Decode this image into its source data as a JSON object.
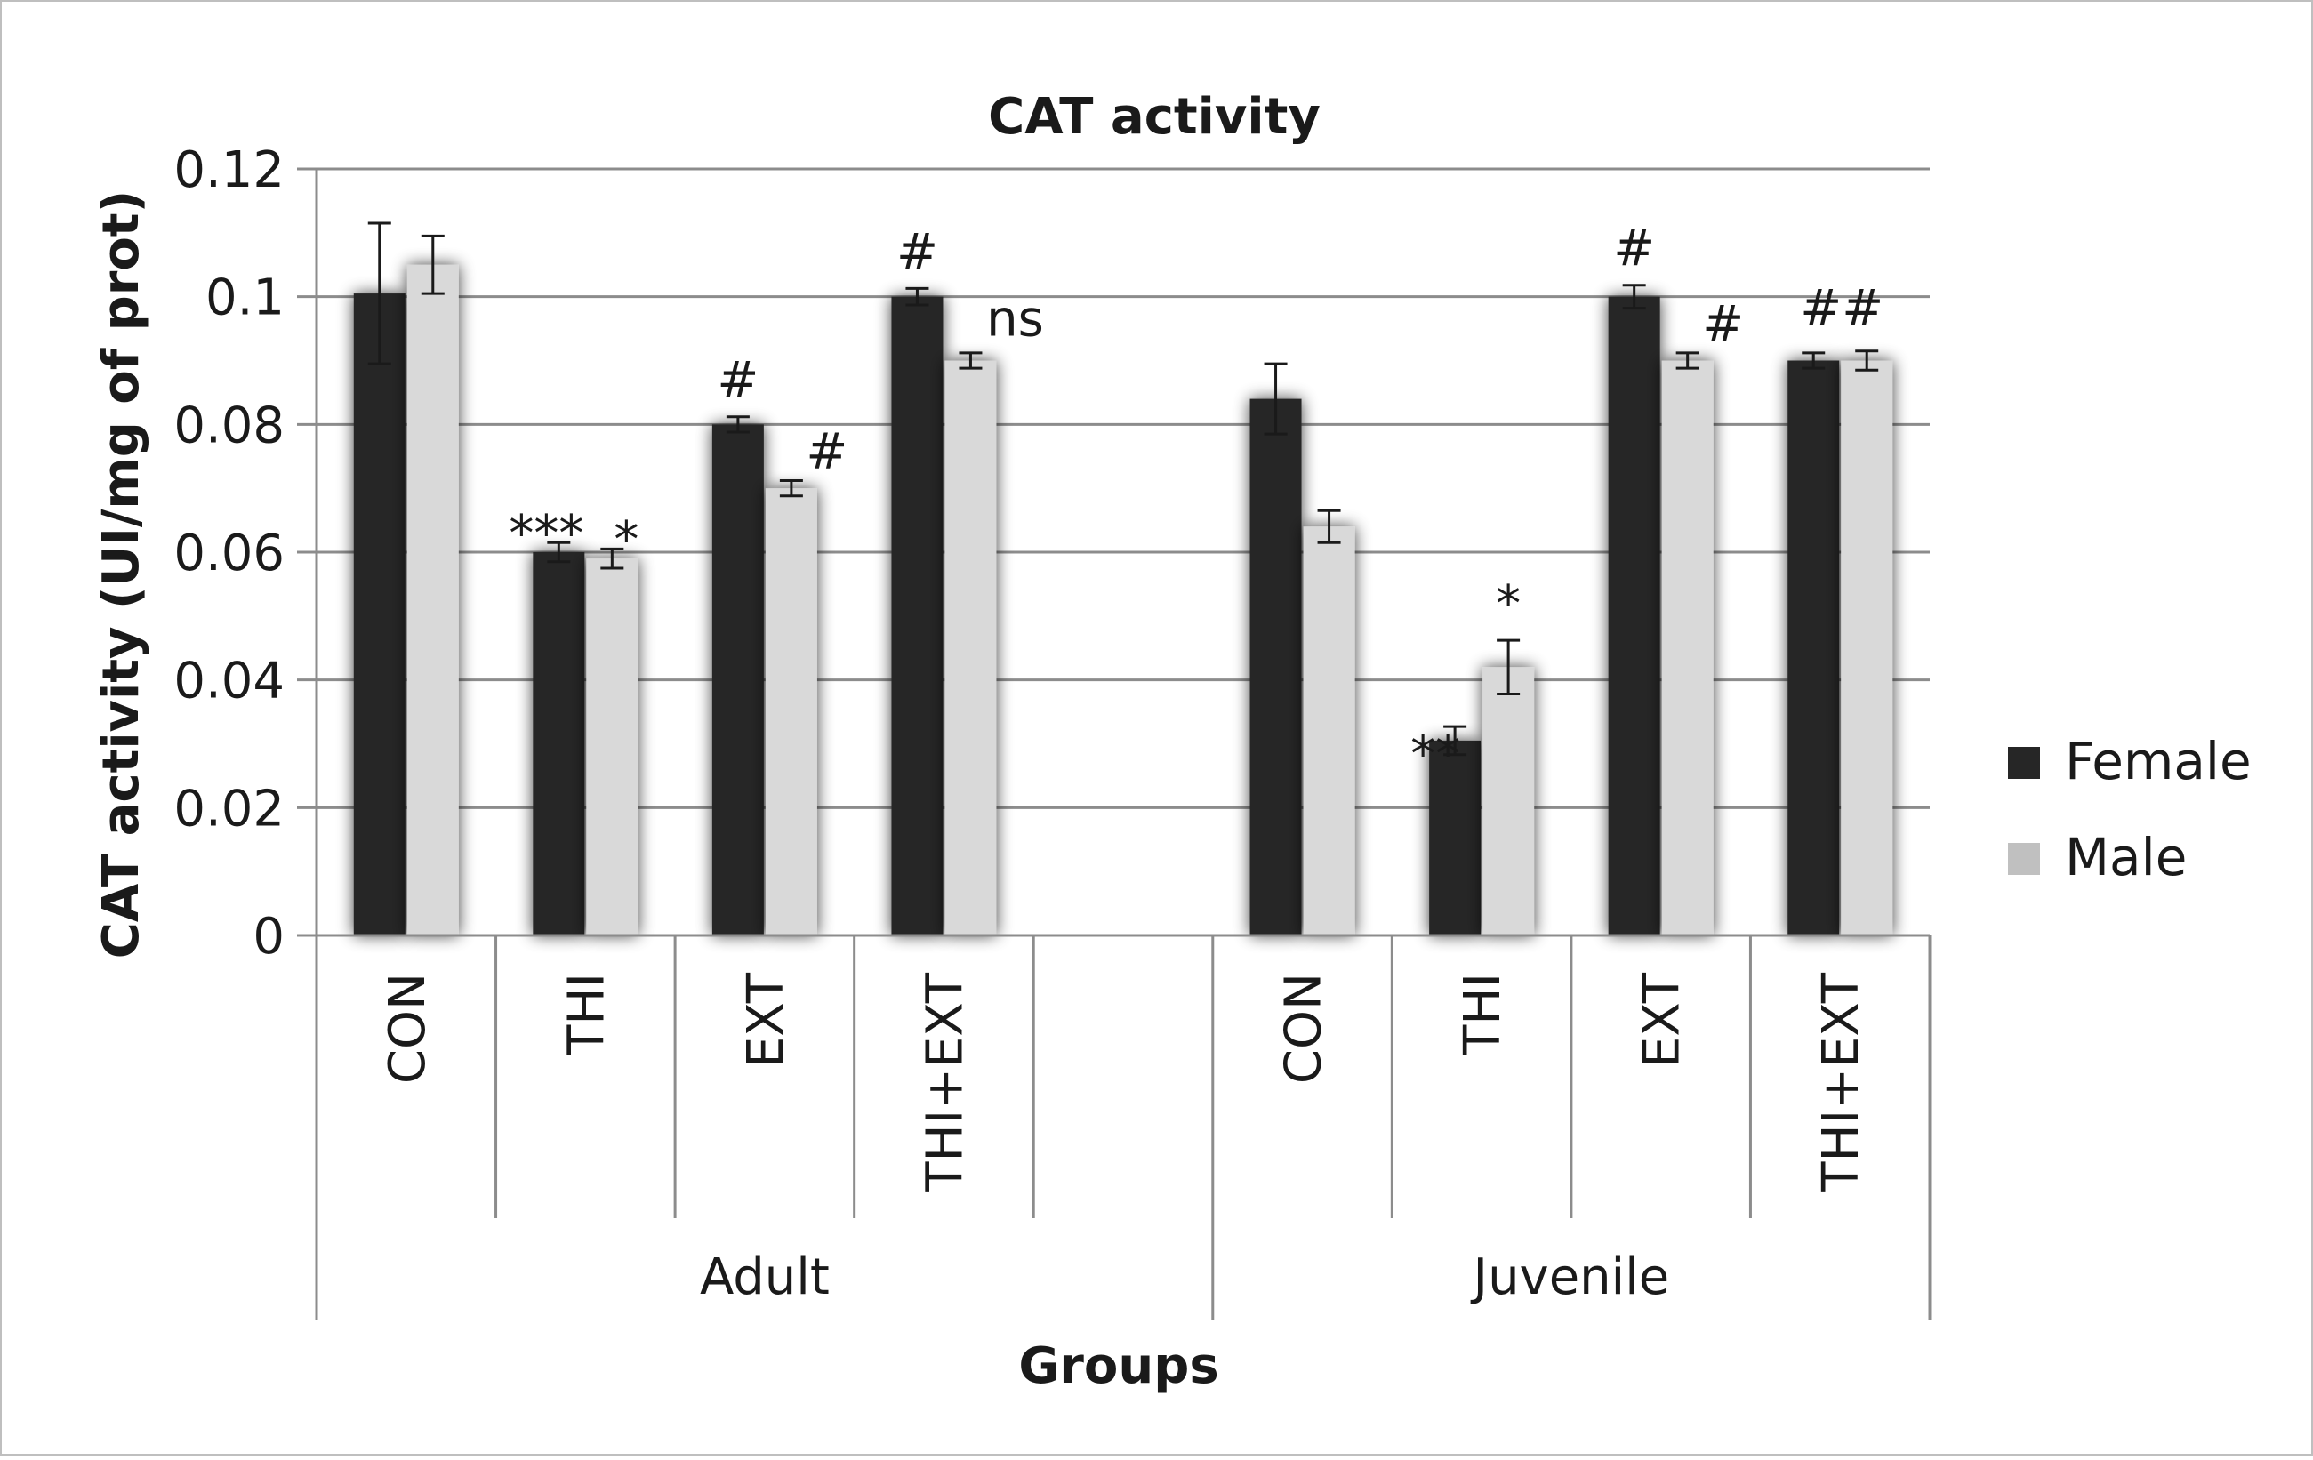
{
  "chart_data": {
    "type": "bar",
    "title": "CAT activity",
    "xlabel": "Groups",
    "ylabel": "CAT activity (UI/mg of prot)",
    "ylim": [
      0,
      0.12
    ],
    "yticks": [
      "0",
      "0.02",
      "0.04",
      "0.06",
      "0.08",
      "0.1",
      "0.12"
    ],
    "grid": true,
    "legend_position": "right",
    "groups": [
      {
        "label": "Adult",
        "categories": [
          "CON",
          "THI",
          "EXT",
          "THI+EXT"
        ]
      },
      {
        "label": "Juvenile",
        "categories": [
          "CON",
          "THI",
          "EXT",
          "THI+EXT"
        ]
      }
    ],
    "categories": [
      "CON",
      "THI",
      "EXT",
      "THI+EXT",
      "",
      "CON",
      "THI",
      "EXT",
      "THI+EXT"
    ],
    "series": [
      {
        "name": "Female",
        "color": "#262626",
        "values": [
          0.1005,
          0.06,
          0.08,
          0.1,
          null,
          0.084,
          0.0305,
          0.1,
          0.09
        ],
        "errors": [
          0.011,
          0.0015,
          0.0012,
          0.0013,
          null,
          0.0055,
          0.0022,
          0.0018,
          0.0012
        ],
        "annotations": [
          "",
          "***",
          "#",
          "#",
          "",
          "",
          "**",
          "#",
          "##"
        ]
      },
      {
        "name": "Male",
        "color": "#d9d9d9",
        "values": [
          0.105,
          0.059,
          0.07,
          0.09,
          null,
          0.064,
          0.042,
          0.09,
          0.09
        ],
        "errors": [
          0.0045,
          0.0015,
          0.0012,
          0.0012,
          null,
          0.0025,
          0.0042,
          0.0012,
          0.0015
        ],
        "annotations": [
          "",
          "*",
          "#",
          "ns",
          "",
          "",
          "*",
          "#",
          ""
        ]
      }
    ]
  }
}
